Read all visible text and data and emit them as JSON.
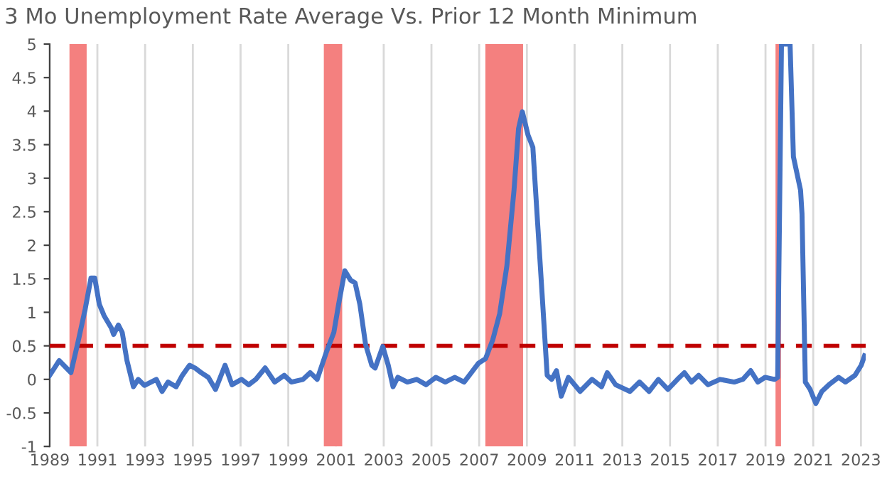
{
  "chart_data": {
    "type": "line",
    "title": "3 Mo Unemployment Rate Average Vs. Prior 12 Month Minimum",
    "series": [
      {
        "color": "#4472c4",
        "x": [
          1989.0,
          1989.4,
          1989.7,
          1989.89,
          1990.19,
          1990.49,
          1990.73,
          1990.89,
          1991.08,
          1991.28,
          1991.58,
          1991.68,
          1991.88,
          1992.04,
          1992.24,
          1992.51,
          1992.71,
          1992.97,
          1993.47,
          1993.71,
          1993.96,
          1994.3,
          1994.56,
          1994.86,
          1995.09,
          1995.35,
          1995.65,
          1995.95,
          1996.35,
          1996.64,
          1997.04,
          1997.34,
          1997.64,
          1998.03,
          1998.43,
          1998.83,
          1999.13,
          1999.62,
          1999.92,
          2000.21,
          2000.61,
          2000.91,
          2001.11,
          2001.37,
          2001.61,
          2001.8,
          2002.0,
          2002.24,
          2002.5,
          2002.64,
          2002.96,
          2003.19,
          2003.39,
          2003.59,
          2003.99,
          2004.38,
          2004.78,
          2005.18,
          2005.58,
          2005.97,
          2006.37,
          2006.67,
          2006.97,
          2007.27,
          2007.57,
          2007.86,
          2008.16,
          2008.46,
          2008.65,
          2008.81,
          2009.05,
          2009.25,
          2009.45,
          2009.65,
          2009.85,
          2010.04,
          2010.24,
          2010.44,
          2010.74,
          2011.23,
          2011.73,
          2012.13,
          2012.37,
          2012.72,
          2013.32,
          2013.72,
          2014.12,
          2014.51,
          2014.91,
          2015.31,
          2015.6,
          2015.9,
          2016.2,
          2016.59,
          2017.09,
          2017.69,
          2018.05,
          2018.38,
          2018.68,
          2018.98,
          2019.38,
          2019.51,
          2019.67,
          2020.03,
          2020.17,
          2020.47,
          2020.53,
          2020.67,
          2020.87,
          2021.11,
          2021.36,
          2021.66,
          2022.06,
          2022.35,
          2022.75,
          2023.01,
          2023.15
        ],
        "values": [
          0.06,
          0.28,
          0.17,
          0.1,
          0.56,
          1.05,
          1.51,
          1.51,
          1.12,
          0.95,
          0.77,
          0.67,
          0.81,
          0.7,
          0.28,
          -0.11,
          0.0,
          -0.09,
          0.0,
          -0.18,
          -0.04,
          -0.11,
          0.06,
          0.21,
          0.17,
          0.1,
          0.03,
          -0.15,
          0.21,
          -0.08,
          0.0,
          -0.08,
          0.0,
          0.17,
          -0.04,
          0.06,
          -0.04,
          0.0,
          0.1,
          0.0,
          0.42,
          0.7,
          1.12,
          1.62,
          1.48,
          1.44,
          1.12,
          0.52,
          0.21,
          0.17,
          0.49,
          0.21,
          -0.11,
          0.03,
          -0.04,
          0.0,
          -0.08,
          0.03,
          -0.04,
          0.03,
          -0.04,
          0.1,
          0.24,
          0.31,
          0.59,
          0.98,
          1.69,
          2.82,
          3.74,
          3.99,
          3.64,
          3.46,
          2.33,
          1.2,
          0.06,
          0.0,
          0.13,
          -0.25,
          0.03,
          -0.18,
          0.0,
          -0.11,
          0.1,
          -0.08,
          -0.18,
          -0.04,
          -0.18,
          0.0,
          -0.15,
          0.0,
          0.1,
          -0.04,
          0.06,
          -0.08,
          0.0,
          -0.04,
          0.0,
          0.13,
          -0.04,
          0.03,
          0.0,
          0.03,
          5.0,
          5.0,
          3.32,
          2.82,
          2.47,
          -0.04,
          -0.15,
          -0.36,
          -0.18,
          -0.08,
          0.03,
          -0.04,
          0.06,
          0.21,
          0.35
        ]
      }
    ],
    "xlim": [
      1989,
      2023.2
    ],
    "xticks": [
      1989,
      1991,
      1993,
      1995,
      1997,
      1999,
      2001,
      2003,
      2005,
      2007,
      2009,
      2011,
      2013,
      2015,
      2017,
      2019,
      2021,
      2023
    ],
    "ylim": [
      -1,
      5
    ],
    "yticks": [
      -1,
      -0.5,
      0,
      0.5,
      1,
      1.5,
      2,
      2.5,
      3,
      3.5,
      4,
      4.5,
      5
    ],
    "grid": "x",
    "legend": false,
    "marker": "none",
    "line_style": "solid",
    "ref_lines": [
      {
        "axis": "y",
        "value": 0.5,
        "color": "#c00000",
        "line_style": "dashed"
      }
    ],
    "bands": [
      {
        "axis": "x",
        "from": 1989.83,
        "to": 1990.55,
        "color": "#f4807f"
      },
      {
        "axis": "x",
        "from": 2000.49,
        "to": 2001.26,
        "color": "#f4807f"
      },
      {
        "axis": "x",
        "from": 2007.26,
        "to": 2008.84,
        "color": "#f4807f"
      },
      {
        "axis": "x",
        "from": 2019.42,
        "to": 2019.65,
        "color": "#f4807f"
      }
    ]
  }
}
